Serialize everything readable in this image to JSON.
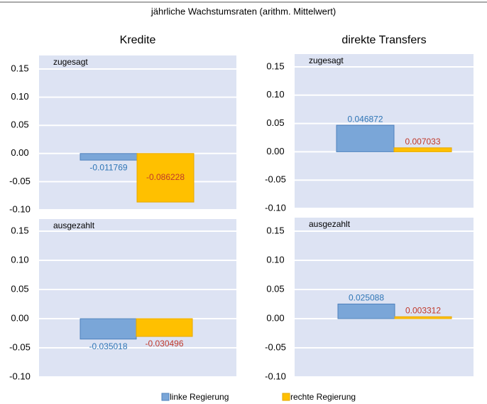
{
  "title": "jährliche Wachstumsraten (arithm. Mittelwert)",
  "chart_data": [
    {
      "type": "bar",
      "title": "Kredite",
      "subtitle": "zugesagt",
      "categories": [
        null
      ],
      "series": [
        {
          "name": "linke Regierung",
          "color": "#7aa6d8",
          "values": [
            -0.011769
          ]
        },
        {
          "name": "rechte Regierung",
          "color": "#ffc000",
          "values": [
            -0.086228
          ]
        }
      ],
      "ylim": [
        -0.1,
        0.15
      ],
      "yticks": [
        {
          "value": -0.1,
          "label": "-0.10"
        },
        -0.05,
        {
          "value": 0,
          "label": "0.00"
        },
        0.05,
        {
          "value": 0.1,
          "label": "0.10"
        },
        0.15
      ],
      "grid": true
    },
    {
      "type": "bar",
      "title": "direkte Transfers",
      "subtitle": "zugesagt",
      "categories": [
        null
      ],
      "series": [
        {
          "name": "linke Regierung",
          "color": "#7aa6d8",
          "values": [
            0.046872
          ]
        },
        {
          "name": "rechte Regierung",
          "color": "#ffc000",
          "values": [
            0.007033
          ]
        }
      ],
      "ylim": [
        -0.1,
        0.15
      ],
      "yticks": [
        {
          "value": -0.1,
          "label": "-0.10"
        },
        -0.05,
        {
          "value": 0,
          "label": "0.00"
        },
        0.05,
        {
          "value": 0.1,
          "label": "0.10"
        },
        0.15
      ],
      "grid": true
    },
    {
      "type": "bar",
      "subtitle": "ausgezahlt",
      "categories": [
        null
      ],
      "series": [
        {
          "name": "linke Regierung",
          "color": "#7aa6d8",
          "values": [
            -0.035018
          ]
        },
        {
          "name": "rechte Regierung",
          "color": "#ffc000",
          "values": [
            -0.030496
          ]
        }
      ],
      "ylim": [
        -0.1,
        0.15
      ],
      "yticks": [
        {
          "value": -0.1,
          "label": "-0.10"
        },
        -0.05,
        {
          "value": 0,
          "label": "0.00"
        },
        0.05,
        {
          "value": 0.1,
          "label": "0.10"
        },
        0.15
      ],
      "grid": true
    },
    {
      "type": "bar",
      "subtitle": "ausgezahlt",
      "categories": [
        null
      ],
      "series": [
        {
          "name": "linke Regierung",
          "color": "#7aa6d8",
          "values": [
            0.025088
          ]
        },
        {
          "name": "rechte Regierung",
          "color": "#ffc000",
          "values": [
            0.003312
          ]
        }
      ],
      "ylim": [
        -0.1,
        0.15
      ],
      "yticks": [
        {
          "value": -0.1,
          "label": "-0.10"
        },
        -0.05,
        {
          "value": 0,
          "label": "0.00"
        },
        0.05,
        {
          "value": 0.1,
          "label": "0.10"
        },
        0.15
      ],
      "grid": true
    }
  ]
}
